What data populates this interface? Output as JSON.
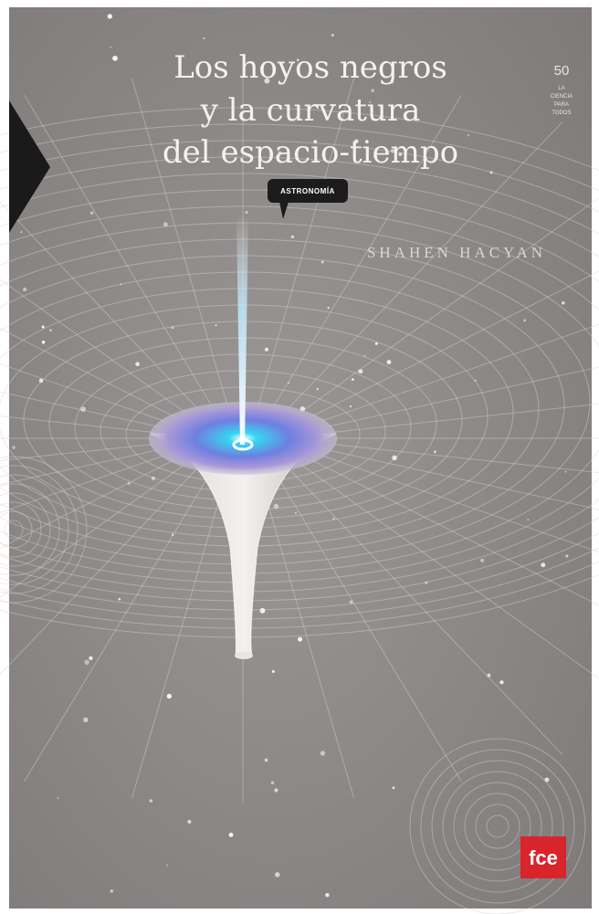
{
  "cover": {
    "title_lines": [
      "Los hoyos negros",
      "y la curvatura",
      "del espacio-tiempo"
    ],
    "series_number": "50",
    "series_name": [
      "LA",
      "CIENCIA",
      "PARA",
      "TODOS"
    ],
    "tag": "ASTRONOMÍA",
    "author": "SHAHEN HACYAN",
    "logo": "fce"
  }
}
